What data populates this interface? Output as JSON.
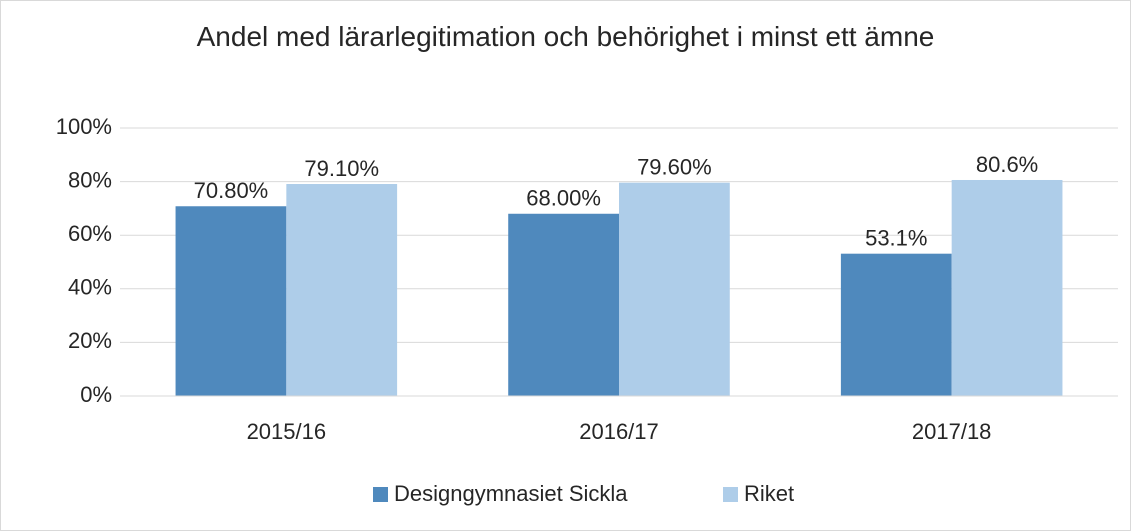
{
  "chart_data": {
    "type": "bar",
    "title": "Andel med lärarlegitimation och behörighet i minst ett ämne",
    "categories": [
      "2015/16",
      "2016/17",
      "2017/18"
    ],
    "series": [
      {
        "name": "Designgymnasiet Sickla",
        "color": "#4f89bd",
        "values": [
          70.8,
          68.0,
          53.1
        ],
        "value_labels": [
          "70.80%",
          "68.00%",
          "53.1%"
        ]
      },
      {
        "name": "Riket",
        "color": "#aecde9",
        "values": [
          79.1,
          79.6,
          80.6
        ],
        "value_labels": [
          "79.10%",
          "79.60%",
          "80.6%"
        ]
      }
    ],
    "ylim": [
      0,
      100
    ],
    "yticks": [
      {
        "value": 0,
        "label": "0%"
      },
      {
        "value": 20,
        "label": "20%"
      },
      {
        "value": 40,
        "label": "40%"
      },
      {
        "value": 60,
        "label": "60%"
      },
      {
        "value": 80,
        "label": "80%"
      },
      {
        "value": 100,
        "label": "100%"
      }
    ],
    "grid": true,
    "legend": "bottom"
  }
}
